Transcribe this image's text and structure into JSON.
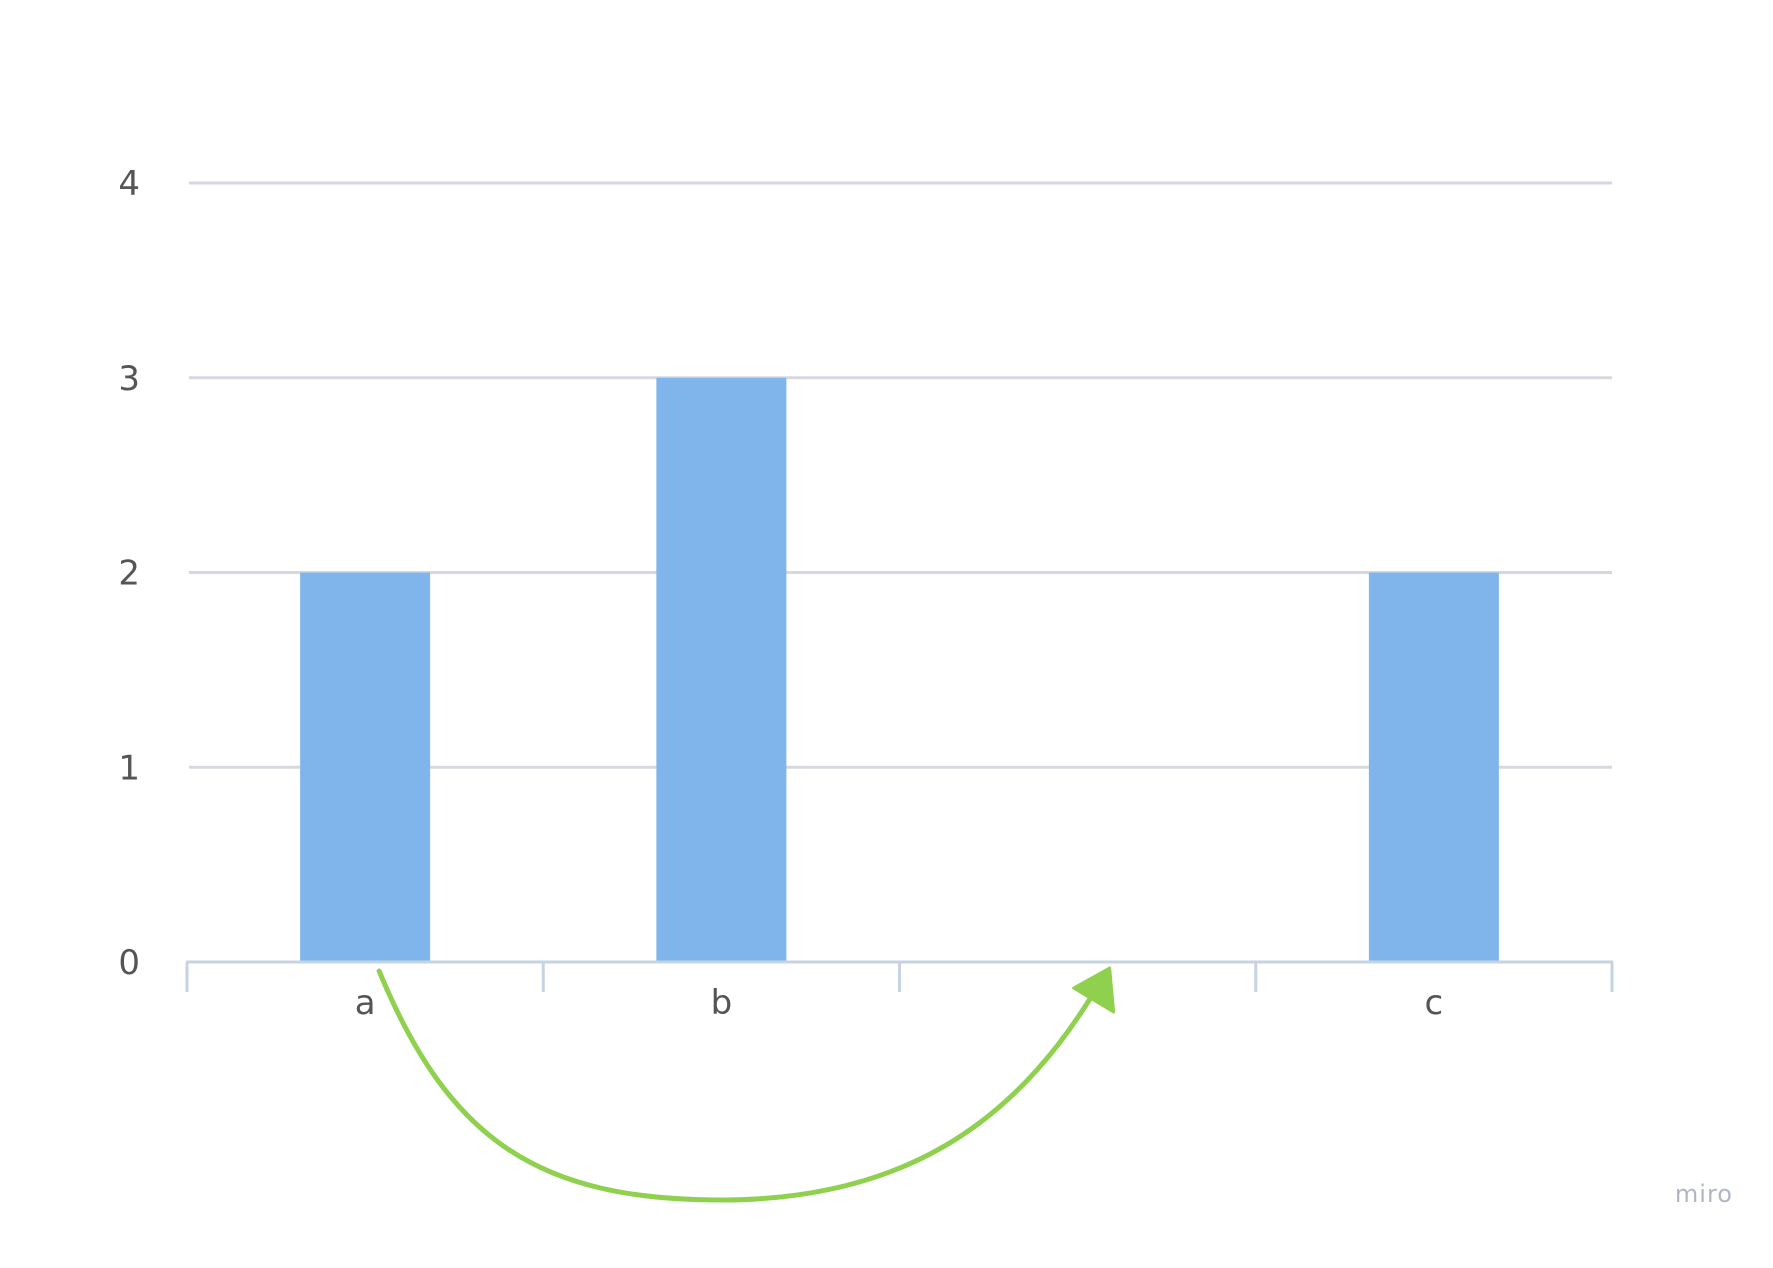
{
  "chart_data": {
    "type": "bar",
    "categories": [
      "a",
      "b",
      "",
      "c"
    ],
    "values": [
      2,
      3,
      0,
      2
    ],
    "ylim": [
      0,
      4
    ],
    "yticks": [
      0,
      1,
      2,
      3,
      4
    ],
    "grid": true,
    "bar_color": "#7fb5ea",
    "grid_color": "#d5d9df",
    "axis_color": "#c5d3e2",
    "annotation": {
      "kind": "curved-arrow",
      "from_category": "a",
      "to_category": "",
      "color": "#8fd14f"
    }
  },
  "watermark": "miro"
}
